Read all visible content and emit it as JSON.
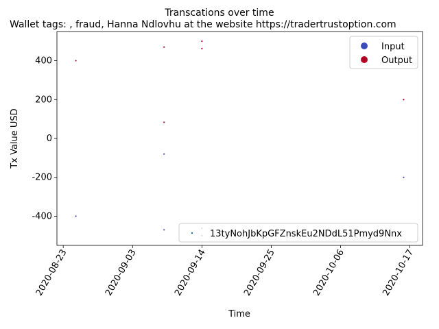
{
  "chart_data": {
    "type": "scatter",
    "title": "Transcations over time",
    "subtitle": "Wallet tags: , fraud, Hanna Ndlovhu at the website https://tradertrustoption.com",
    "xlabel": "Time",
    "ylabel": "Tx Value USD",
    "x_range": [
      "2020-08-22",
      "2020-10-19"
    ],
    "ylim": [
      -550,
      550
    ],
    "x_ticks": [
      "2020-08-23",
      "2020-09-03",
      "2020-09-14",
      "2020-09-25",
      "2020-10-06",
      "2020-10-17"
    ],
    "y_ticks": [
      -400,
      -200,
      0,
      200,
      400
    ],
    "grid": false,
    "legend_top": {
      "position": "upper-right",
      "entries": [
        {
          "label": "Input",
          "color": "#3b4cc0"
        },
        {
          "label": "Output",
          "color": "#b40426"
        }
      ]
    },
    "legend_bottom": {
      "position": "lower-right",
      "entries": [
        {
          "label": "13tyNohJbKpGFZnskEu2NDdL51Pmyd9Nnx",
          "color": "#1f77b4"
        }
      ]
    },
    "series": [
      {
        "name": "Input",
        "color": "#3b4cc0",
        "points": [
          {
            "x": "2020-08-25",
            "y": -400
          },
          {
            "x": "2020-09-08",
            "y": -470
          },
          {
            "x": "2020-09-08",
            "y": -80
          },
          {
            "x": "2020-09-14",
            "y": -500
          },
          {
            "x": "2020-09-14",
            "y": -462
          },
          {
            "x": "2020-10-16",
            "y": -200
          }
        ]
      },
      {
        "name": "Output",
        "color": "#b40426",
        "points": [
          {
            "x": "2020-08-25",
            "y": 400
          },
          {
            "x": "2020-09-08",
            "y": 470
          },
          {
            "x": "2020-09-08",
            "y": 83
          },
          {
            "x": "2020-09-14",
            "y": 500
          },
          {
            "x": "2020-09-14",
            "y": 462
          },
          {
            "x": "2020-10-16",
            "y": 200
          }
        ]
      }
    ]
  }
}
